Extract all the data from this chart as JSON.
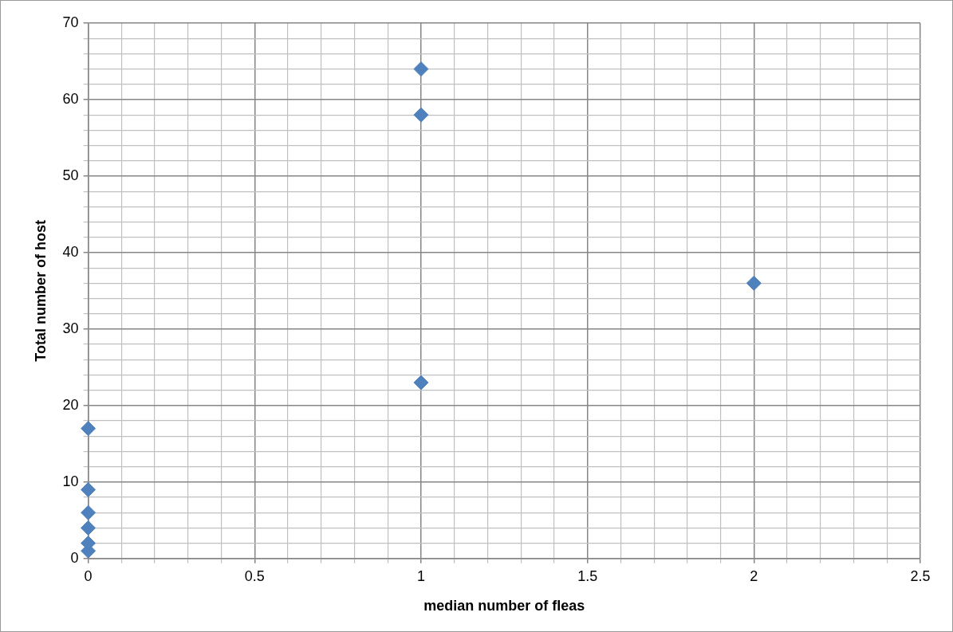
{
  "chart_data": {
    "type": "scatter",
    "xlabel": "median number of fleas",
    "ylabel": "Total number of host",
    "x": [
      0,
      0,
      0,
      0,
      0,
      0,
      1,
      1,
      1,
      2
    ],
    "values": [
      17,
      9,
      6,
      4,
      2,
      1,
      64,
      58,
      23,
      36
    ],
    "color": "#4f81bd",
    "marker": "diamond",
    "grid": true,
    "xlim": [
      0,
      2.5
    ],
    "xticks": [
      0,
      {
        "value": 0.1,
        "label": null
      },
      {
        "value": 0.2,
        "label": null
      },
      {
        "value": 0.3,
        "label": null
      },
      {
        "value": 0.4,
        "label": null
      },
      0.5,
      {
        "value": 0.6,
        "label": null
      },
      {
        "value": 0.7,
        "label": null
      },
      {
        "value": 0.8,
        "label": null
      },
      {
        "value": 0.9,
        "label": null
      },
      1,
      {
        "value": 1.1,
        "label": null
      },
      {
        "value": 1.2,
        "label": null
      },
      {
        "value": 1.3,
        "label": null
      },
      {
        "value": 1.4,
        "label": null
      },
      1.5,
      {
        "value": 1.6,
        "label": null
      },
      {
        "value": 1.7,
        "label": null
      },
      {
        "value": 1.8,
        "label": null
      },
      {
        "value": 1.9,
        "label": null
      },
      2,
      {
        "value": 2.1,
        "label": null
      },
      {
        "value": 2.2,
        "label": null
      },
      {
        "value": 2.3,
        "label": null
      },
      {
        "value": 2.4,
        "label": null
      },
      2.5
    ],
    "ylim": [
      0,
      70
    ],
    "yticks": [
      0,
      {
        "value": 2,
        "label": null
      },
      {
        "value": 4,
        "label": null
      },
      {
        "value": 6,
        "label": null
      },
      {
        "value": 8,
        "label": null
      },
      10,
      {
        "value": 12,
        "label": null
      },
      {
        "value": 14,
        "label": null
      },
      {
        "value": 16,
        "label": null
      },
      {
        "value": 18,
        "label": null
      },
      20,
      {
        "value": 22,
        "label": null
      },
      {
        "value": 24,
        "label": null
      },
      {
        "value": 26,
        "label": null
      },
      {
        "value": 28,
        "label": null
      },
      30,
      {
        "value": 32,
        "label": null
      },
      {
        "value": 34,
        "label": null
      },
      {
        "value": 36,
        "label": null
      },
      {
        "value": 38,
        "label": null
      },
      40,
      {
        "value": 42,
        "label": null
      },
      {
        "value": 44,
        "label": null
      },
      {
        "value": 46,
        "label": null
      },
      {
        "value": 48,
        "label": null
      },
      50,
      {
        "value": 52,
        "label": null
      },
      {
        "value": 54,
        "label": null
      },
      {
        "value": 56,
        "label": null
      },
      {
        "value": 58,
        "label": null
      },
      60,
      {
        "value": 62,
        "label": null
      },
      {
        "value": 64,
        "label": null
      },
      {
        "value": 66,
        "label": null
      },
      {
        "value": 68,
        "label": null
      },
      70
    ]
  }
}
